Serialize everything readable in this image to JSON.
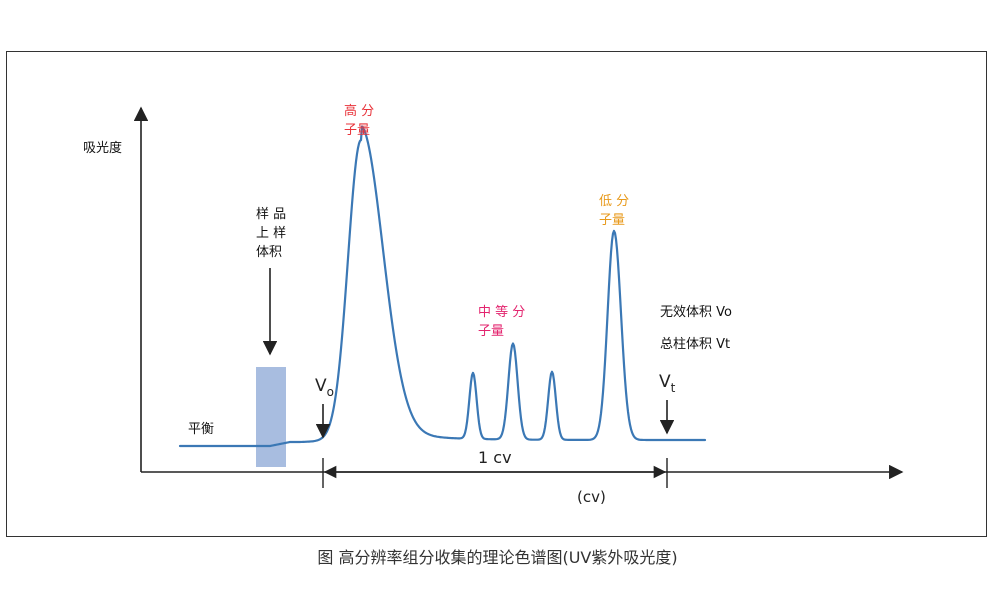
{
  "labels": {
    "y_axis": "吸光度",
    "x_axis_unit": "(cv)",
    "span": "1 cv",
    "equilibrium": "平衡",
    "sample_loading": [
      "样 品",
      "上 样",
      "体积"
    ],
    "high_mw": [
      "高 分",
      "子量"
    ],
    "mid_mw": [
      "中 等 分",
      "子量"
    ],
    "low_mw": [
      "低 分",
      "子量"
    ],
    "void_volume": "无效体积 Vo",
    "total_column_volume": "总柱体积 Vt",
    "vo_main": "V",
    "vo_sub": "o",
    "vt_main": "V",
    "vt_sub": "t"
  },
  "colors": {
    "curve": "#3b78b5",
    "sample_band": "#a8bde0",
    "high": "#e8333a",
    "mid": "#e3246e",
    "low": "#e89a1c",
    "axis": "#222222"
  },
  "caption": "图    高分辨率组分收集的理论色谱图(UV紫外吸光度)"
}
